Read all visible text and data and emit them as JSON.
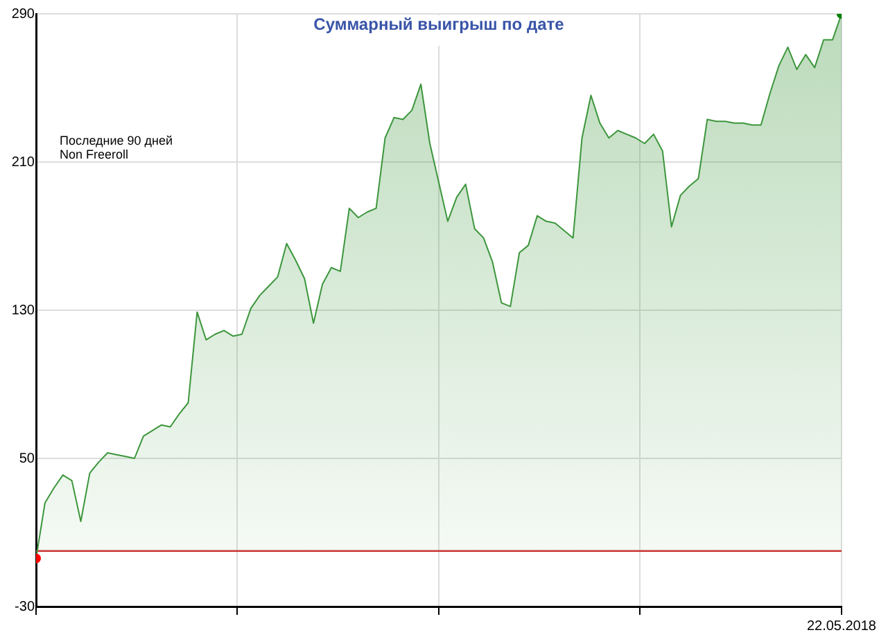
{
  "chart_data": {
    "type": "area",
    "title": "Суммарный выигрыш по дате",
    "annotations": [
      "Последние 90 дней",
      "Non Freeroll"
    ],
    "categories": [
      null,
      null,
      null,
      null,
      null,
      null,
      null,
      null,
      null,
      null,
      null,
      null,
      null,
      null,
      null,
      null,
      null,
      null,
      null,
      null,
      null,
      null,
      null,
      null,
      null,
      null,
      null,
      null,
      null,
      null,
      null,
      null,
      null,
      null,
      null,
      null,
      null,
      null,
      null,
      null,
      null,
      null,
      null,
      null,
      null,
      null,
      null,
      null,
      null,
      null,
      null,
      null,
      null,
      null,
      null,
      null,
      null,
      null,
      null,
      null,
      null,
      null,
      null,
      null,
      null,
      null,
      null,
      null,
      null,
      null,
      null,
      null,
      null,
      null,
      null,
      null,
      null,
      null,
      null,
      null,
      null,
      null,
      null,
      null,
      null,
      null,
      null,
      null,
      null,
      null,
      "22.05.2018"
    ],
    "series": [
      {
        "color": "#3c963c",
        "values": [
          -4,
          26,
          34,
          41,
          38,
          16,
          42,
          48,
          53,
          52,
          51,
          50,
          62,
          65,
          68,
          67,
          74,
          80,
          129,
          114,
          117,
          119,
          116,
          117,
          131,
          138,
          143,
          148,
          166,
          157,
          147,
          123,
          144,
          153,
          151,
          185,
          180,
          183,
          185,
          223,
          234,
          233,
          238,
          252,
          220,
          199,
          178,
          191,
          198,
          174,
          169,
          156,
          134,
          132,
          161,
          165,
          181,
          178,
          177,
          173,
          169,
          223,
          246,
          231,
          223,
          227,
          225,
          223,
          220,
          225,
          216,
          175,
          192,
          197,
          201,
          233,
          232,
          232,
          231,
          231,
          230,
          230,
          247,
          262,
          272,
          260,
          268,
          261,
          276,
          276,
          290
        ],
        "colors": [
          "#ff0000",
          null,
          null,
          null,
          null,
          null,
          null,
          null,
          null,
          null,
          null,
          null,
          null,
          null,
          null,
          null,
          null,
          null,
          null,
          null,
          null,
          null,
          null,
          null,
          null,
          null,
          null,
          null,
          null,
          null,
          null,
          null,
          null,
          null,
          null,
          null,
          null,
          null,
          null,
          null,
          null,
          null,
          null,
          null,
          null,
          null,
          null,
          null,
          null,
          null,
          null,
          null,
          null,
          null,
          null,
          null,
          null,
          null,
          null,
          null,
          null,
          null,
          null,
          null,
          null,
          null,
          null,
          null,
          null,
          null,
          null,
          null,
          null,
          null,
          null,
          null,
          null,
          null,
          null,
          null,
          null,
          null,
          null,
          null,
          null,
          null,
          null,
          null,
          null,
          null,
          "#008000"
        ]
      }
    ],
    "ylim": [
      -30,
      290
    ],
    "yticks": [
      -30,
      50,
      130,
      210,
      290
    ],
    "ref_lines": [
      {
        "axis": "y",
        "value": 0,
        "color": "#cc3333"
      }
    ],
    "grid": true,
    "legend": false
  }
}
